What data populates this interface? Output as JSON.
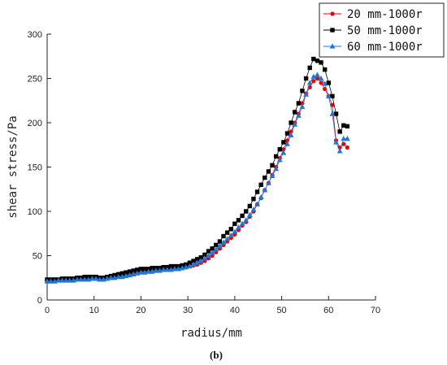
{
  "chart_data": {
    "type": "line",
    "xlabel": "radius/mm",
    "ylabel": "shear stress/Pa",
    "caption": "(b)",
    "xlim": [
      0,
      70
    ],
    "ylim": [
      0,
      300
    ],
    "xticks": [
      0,
      10,
      20,
      30,
      40,
      50,
      60,
      70
    ],
    "yticks": [
      0,
      50,
      100,
      150,
      200,
      250,
      300
    ],
    "grid": false,
    "legend_position": "top-right",
    "series": [
      {
        "name": "20 mm-1000r",
        "color": "#e8000b",
        "marker": "circle",
        "x": [
          0,
          0.8,
          1.6,
          2.4,
          3.2,
          4.0,
          4.8,
          5.6,
          6.4,
          7.2,
          8.0,
          8.8,
          9.6,
          10.4,
          11.2,
          12.0,
          12.8,
          13.6,
          14.4,
          15.2,
          16.0,
          16.8,
          17.6,
          18.4,
          19.2,
          20.0,
          20.8,
          21.6,
          22.4,
          23.2,
          24.0,
          24.8,
          25.6,
          26.4,
          27.2,
          28.0,
          28.8,
          29.6,
          30.4,
          31.2,
          32.0,
          32.8,
          33.6,
          34.4,
          35.2,
          36.0,
          36.8,
          37.6,
          38.4,
          39.2,
          40.0,
          40.8,
          41.6,
          42.4,
          43.2,
          44.0,
          44.8,
          45.6,
          46.4,
          47.2,
          48.0,
          48.8,
          49.6,
          50.4,
          51.2,
          52.0,
          52.8,
          53.6,
          54.4,
          55.2,
          56.0,
          56.8,
          57.6,
          58.4,
          59.2,
          60.0,
          60.8,
          61.6,
          62.4,
          63.2,
          64.0
        ],
        "y": [
          22,
          22,
          22,
          22,
          22,
          23,
          23,
          23,
          23,
          24,
          24,
          24,
          25,
          25,
          24,
          24,
          24,
          25,
          26,
          27,
          27,
          28,
          29,
          30,
          31,
          32,
          32,
          33,
          33,
          34,
          34,
          34,
          35,
          35,
          35,
          36,
          36,
          37,
          38,
          39,
          40,
          42,
          44,
          47,
          50,
          54,
          58,
          62,
          66,
          70,
          74,
          79,
          84,
          88,
          94,
          100,
          108,
          115,
          124,
          132,
          141,
          150,
          160,
          170,
          180,
          190,
          200,
          210,
          222,
          233,
          240,
          247,
          250,
          245,
          238,
          230,
          220,
          180,
          172,
          176,
          172
        ]
      },
      {
        "name": "50 mm-1000r",
        "color": "#000000",
        "marker": "square",
        "x": [
          0,
          0.8,
          1.6,
          2.4,
          3.2,
          4.0,
          4.8,
          5.6,
          6.4,
          7.2,
          8.0,
          8.8,
          9.6,
          10.4,
          11.2,
          12.0,
          12.8,
          13.6,
          14.4,
          15.2,
          16.0,
          16.8,
          17.6,
          18.4,
          19.2,
          20.0,
          20.8,
          21.6,
          22.4,
          23.2,
          24.0,
          24.8,
          25.6,
          26.4,
          27.2,
          28.0,
          28.8,
          29.6,
          30.4,
          31.2,
          32.0,
          32.8,
          33.6,
          34.4,
          35.2,
          36.0,
          36.8,
          37.6,
          38.4,
          39.2,
          40.0,
          40.8,
          41.6,
          42.4,
          43.2,
          44.0,
          44.8,
          45.6,
          46.4,
          47.2,
          48.0,
          48.8,
          49.6,
          50.4,
          51.2,
          52.0,
          52.8,
          53.6,
          54.4,
          55.2,
          56.0,
          56.8,
          57.6,
          58.4,
          59.2,
          60.0,
          60.8,
          61.6,
          62.4,
          63.2,
          64.0
        ],
        "y": [
          23,
          23,
          23,
          23,
          24,
          24,
          24,
          24,
          25,
          25,
          26,
          26,
          26,
          26,
          25,
          25,
          26,
          27,
          28,
          29,
          30,
          31,
          32,
          33,
          34,
          35,
          35,
          35,
          36,
          36,
          36,
          37,
          37,
          38,
          38,
          38,
          39,
          40,
          42,
          44,
          46,
          48,
          51,
          55,
          58,
          62,
          66,
          72,
          76,
          80,
          86,
          90,
          95,
          100,
          106,
          114,
          122,
          130,
          138,
          145,
          152,
          162,
          170,
          178,
          188,
          200,
          212,
          222,
          236,
          250,
          262,
          272,
          270,
          268,
          260,
          245,
          230,
          210,
          190,
          197,
          196
        ]
      },
      {
        "name": "60 mm-1000r",
        "color": "#1f77d4",
        "marker": "triangle",
        "x": [
          0,
          0.8,
          1.6,
          2.4,
          3.2,
          4.0,
          4.8,
          5.6,
          6.4,
          7.2,
          8.0,
          8.8,
          9.6,
          10.4,
          11.2,
          12.0,
          12.8,
          13.6,
          14.4,
          15.2,
          16.0,
          16.8,
          17.6,
          18.4,
          19.2,
          20.0,
          20.8,
          21.6,
          22.4,
          23.2,
          24.0,
          24.8,
          25.6,
          26.4,
          27.2,
          28.0,
          28.8,
          29.6,
          30.4,
          31.2,
          32.0,
          32.8,
          33.6,
          34.4,
          35.2,
          36.0,
          36.8,
          37.6,
          38.4,
          39.2,
          40.0,
          40.8,
          41.6,
          42.4,
          43.2,
          44.0,
          44.8,
          45.6,
          46.4,
          47.2,
          48.0,
          48.8,
          49.6,
          50.4,
          51.2,
          52.0,
          52.8,
          53.6,
          54.4,
          55.2,
          56.0,
          56.8,
          57.6,
          58.4,
          59.2,
          60.0,
          60.8,
          61.6,
          62.4,
          63.2,
          64.0
        ],
        "y": [
          21,
          21,
          21,
          22,
          22,
          22,
          22,
          22,
          23,
          23,
          23,
          23,
          24,
          24,
          23,
          23,
          24,
          25,
          25,
          26,
          26,
          27,
          28,
          29,
          30,
          31,
          31,
          32,
          32,
          33,
          33,
          34,
          34,
          34,
          35,
          35,
          36,
          37,
          38,
          40,
          42,
          44,
          47,
          50,
          53,
          57,
          61,
          65,
          69,
          73,
          77,
          82,
          86,
          90,
          96,
          102,
          108,
          116,
          124,
          132,
          140,
          148,
          158,
          166,
          176,
          186,
          198,
          208,
          218,
          232,
          245,
          252,
          254,
          250,
          244,
          230,
          210,
          178,
          168,
          182,
          182
        ]
      }
    ]
  }
}
